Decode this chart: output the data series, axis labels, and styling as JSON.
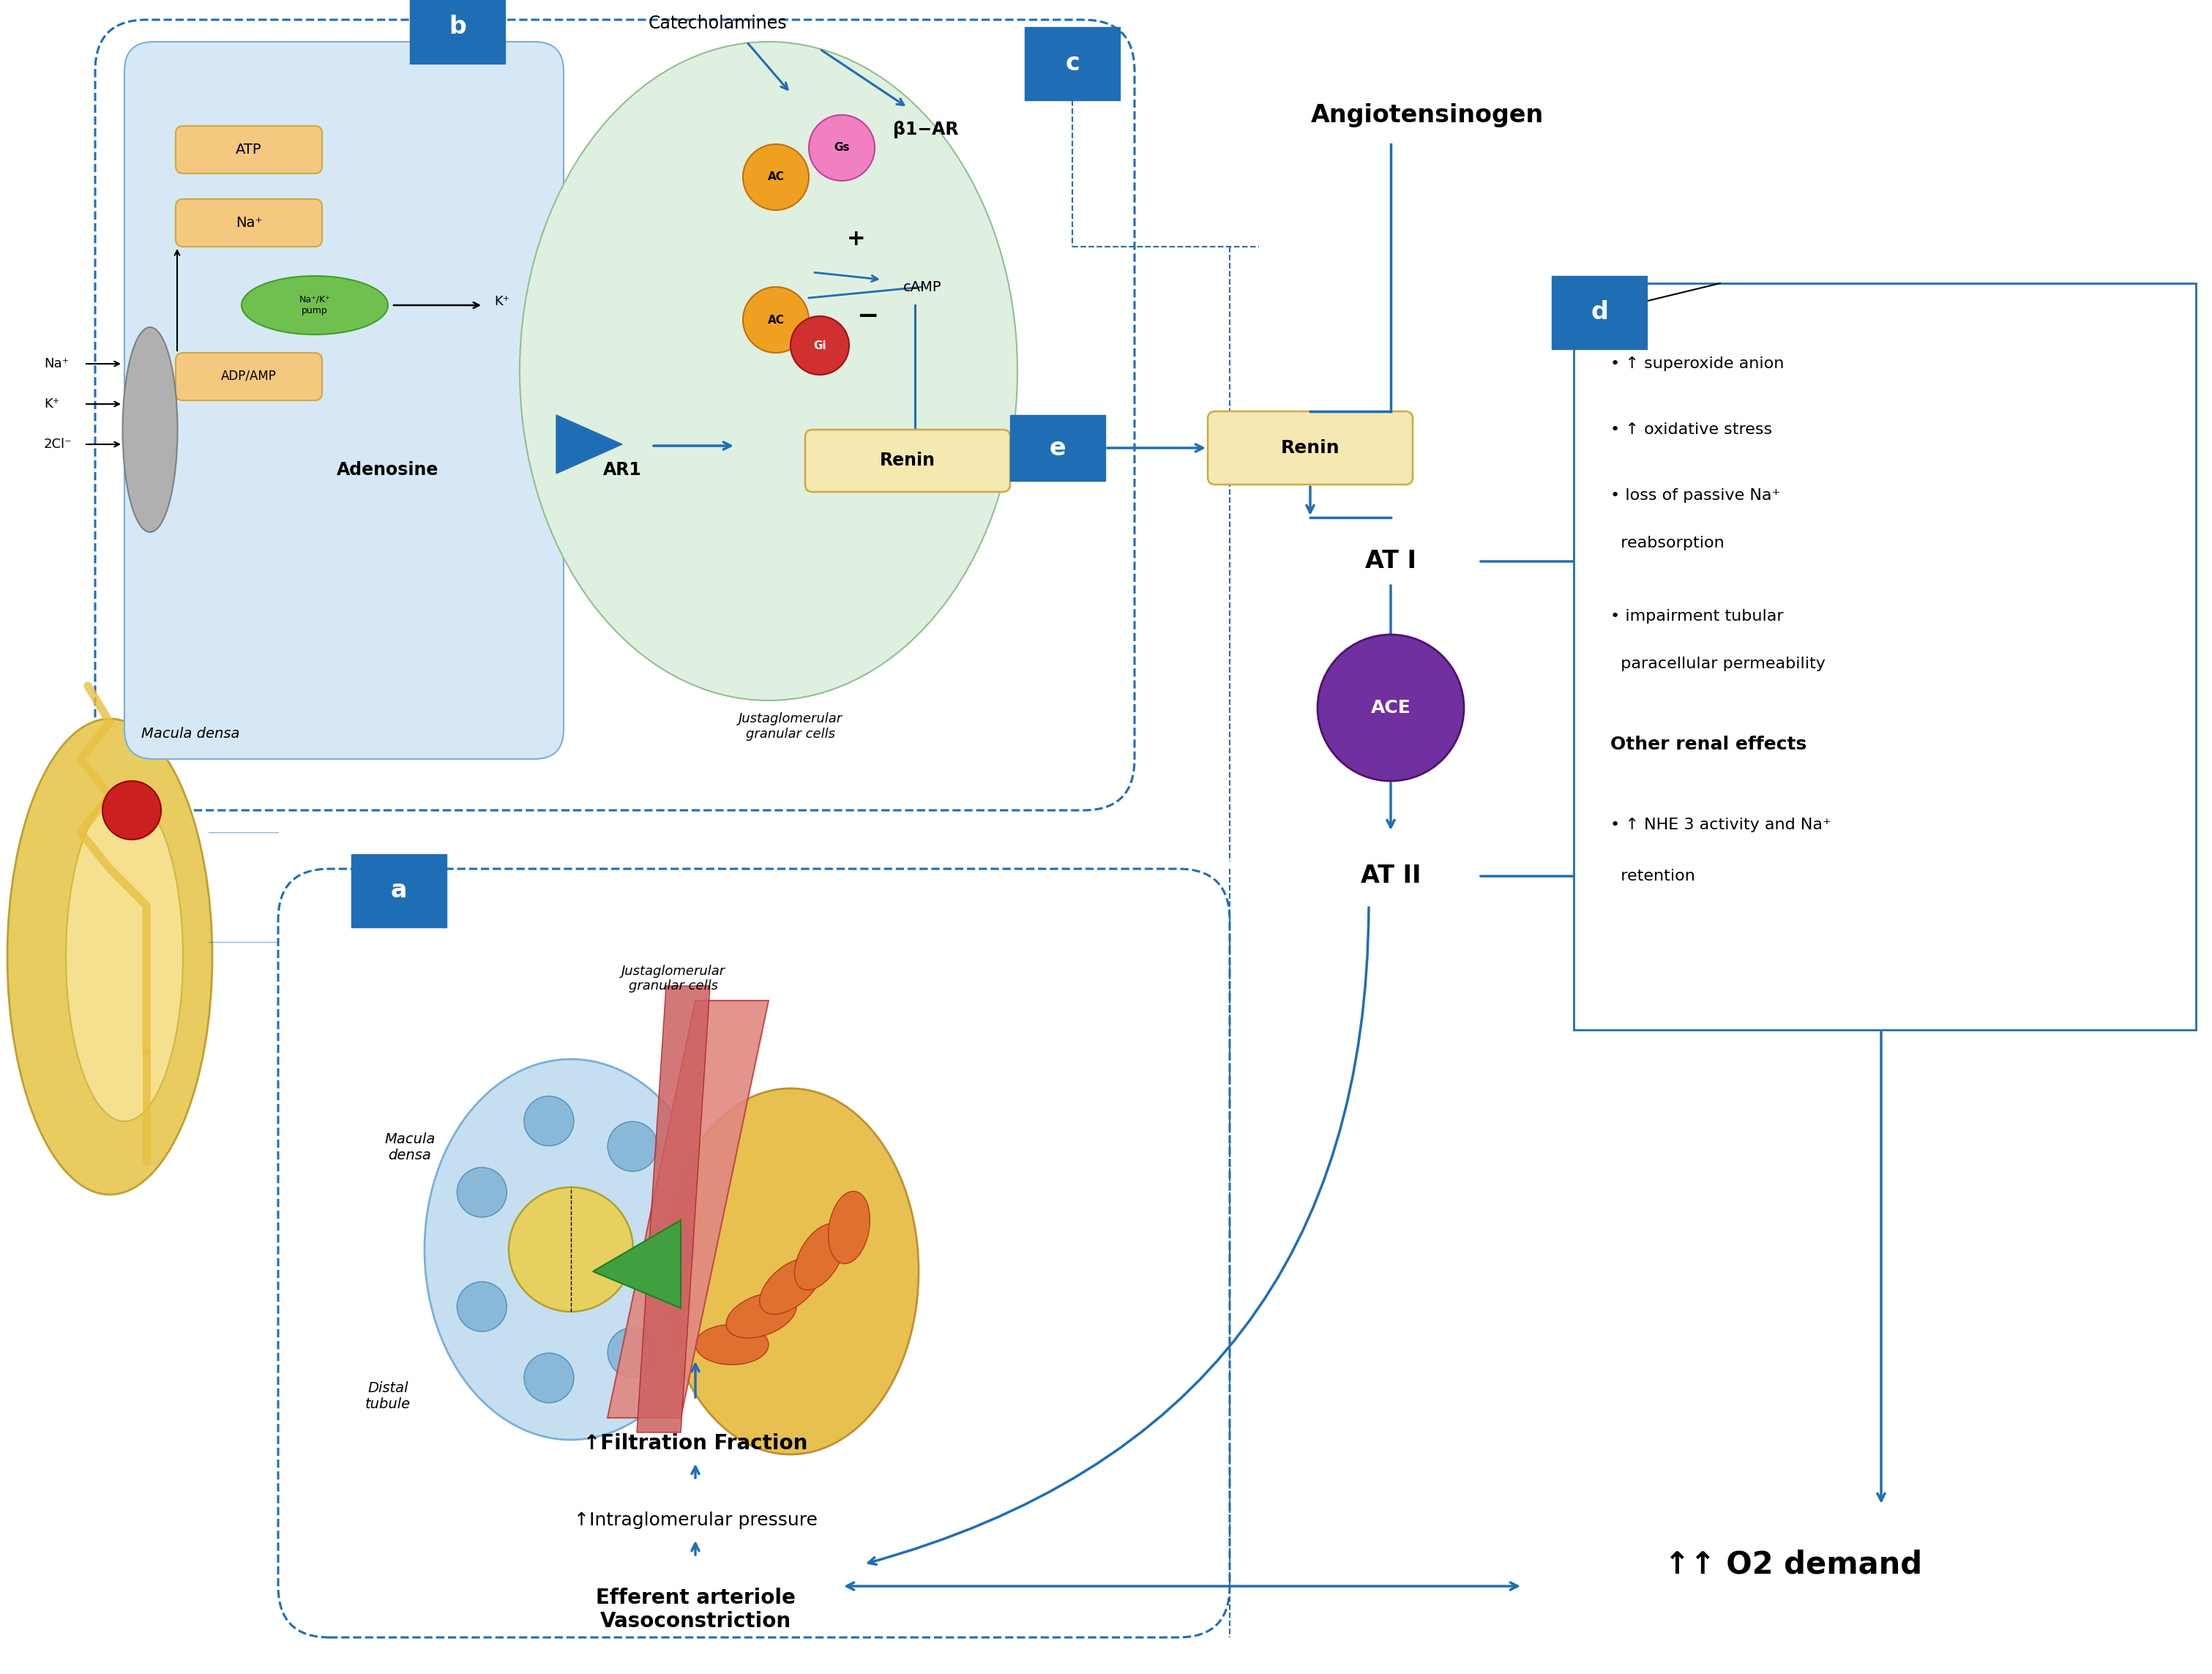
{
  "fig_width": 30.22,
  "fig_height": 22.87,
  "blue": "#1f6eb5",
  "light_blue_bg": "#d6e8f5",
  "light_green_bg": "#e0f0e0",
  "tan_box": "#f5e8b0",
  "orange_circle": "#f0a020",
  "pink_circle": "#f080c0",
  "red_circle": "#d03030",
  "purple_circle": "#7030a0",
  "gray_channel": "#b0b0b0",
  "green_pump": "#70c050",
  "gold_kidney": "#e8cc60",
  "effects_lines": [
    "• ↑ superoxide anion",
    "• ↑ oxidative stress",
    "• loss of passive Na⁺",
    "  reabsorption",
    "• impairment tubular",
    "  paracellular permeability"
  ],
  "effects_y": [
    17.9,
    17.0,
    16.1,
    15.45,
    14.45,
    13.8
  ],
  "other_renal": "Other renal effects",
  "nhe_line1": "• ↑ NHE 3 activity and Na⁺",
  "nhe_line2": "  retention",
  "angiotensinogen": "Angiotensinogen",
  "catecholamines": "Catecholamines",
  "o2_demand": "↑↑ O2 demand",
  "at1": "AT I",
  "at2": "AT II",
  "ace": "ACE",
  "adenosine": "Adenosine",
  "ar1": "AR1",
  "beta1ar": "β1−AR",
  "renin": "Renin",
  "macula_densa_label": "Macula densa",
  "jgc_label": "Justaglomerular\ngranular cells",
  "macula_densa_a": "Macula\ndensa",
  "jgc_a": "Justaglomerular\ngranular cells",
  "distal_tubule": "Distal\ntubule",
  "filtration": "↑Filtration Fraction",
  "intraglo": "↑Intraglomerular pressure",
  "efferent": "Efferent arteriole\nVasoconstriction",
  "atp": "ATP",
  "na": "Na⁺",
  "na_k_pump": "Na⁺/K⁺\npump",
  "k_ion": "K⁺",
  "adp_amp": "ADP/AMP",
  "na_label": "Na⁺",
  "k_label": "K⁺",
  "cl_label": "2Cl⁻",
  "gs": "Gs",
  "gi": "Gi",
  "ac": "AC",
  "camp": "cAMP",
  "plus": "+",
  "minus": "−",
  "label_a": "a",
  "label_b": "b",
  "label_c": "c",
  "label_d": "d",
  "label_e": "e"
}
